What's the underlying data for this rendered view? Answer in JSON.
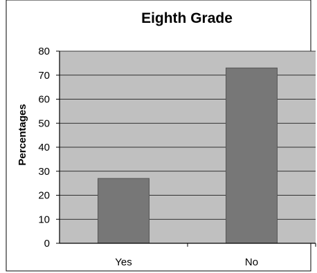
{
  "chart_data": {
    "type": "bar",
    "title": "Eighth Grade",
    "xlabel": "",
    "ylabel": "Percentages",
    "categories": [
      "Yes",
      "No"
    ],
    "values": [
      27,
      73
    ],
    "ylim": [
      0,
      80
    ],
    "yticks": [
      0,
      10,
      20,
      30,
      40,
      50,
      60,
      70,
      80
    ],
    "grid": true,
    "legend": "none",
    "colors": {
      "plot_background": "#c0c0c0",
      "bar_fill": "#777777",
      "bar_stroke": "#555555",
      "gridline": "#000000",
      "axis": "#000000"
    }
  }
}
